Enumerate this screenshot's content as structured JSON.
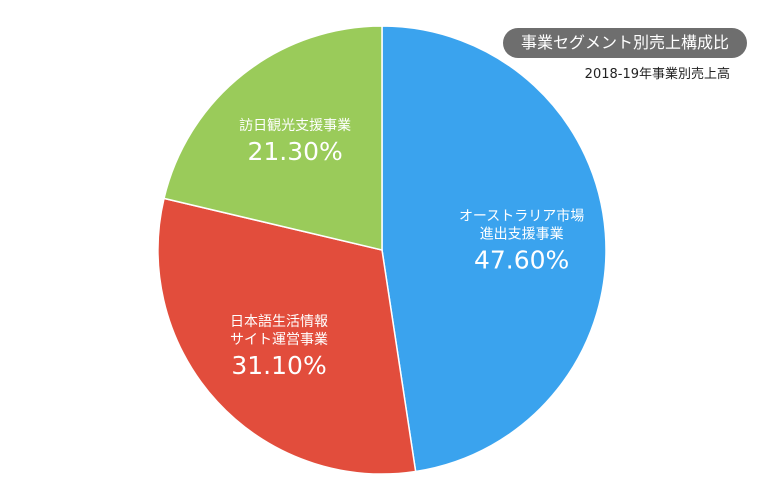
{
  "chart_data": {
    "type": "pie",
    "title": "事業セグメント別売上構成比",
    "subtitle": "2018-19年事業別売上高",
    "slices": [
      {
        "label_lines": [
          "オーストラリア市場",
          "進出支援事業"
        ],
        "value": 47.6,
        "value_label": "47.60%",
        "color": "#3aa3ee"
      },
      {
        "label_lines": [
          "日本語生活情報",
          "サイト運営事業"
        ],
        "value": 31.1,
        "value_label": "31.10%",
        "color": "#e24d3c"
      },
      {
        "label_lines": [
          "訪日観光支援事業"
        ],
        "value": 21.3,
        "value_label": "21.30%",
        "color": "#9acb5a"
      }
    ]
  }
}
